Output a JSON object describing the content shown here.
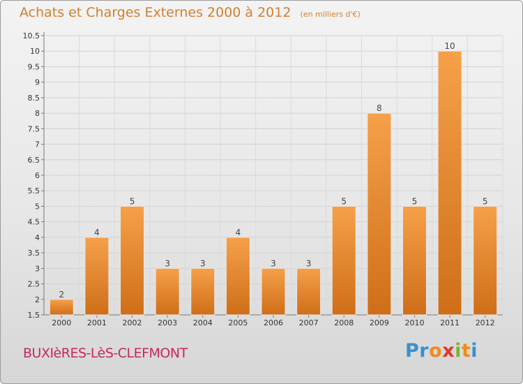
{
  "chart_data": {
    "type": "bar",
    "title": "Achats et Charges Externes 2000 à 2012",
    "subtitle": "(en milliers d'€)",
    "categories": [
      "2000",
      "2001",
      "2002",
      "2003",
      "2004",
      "2005",
      "2006",
      "2007",
      "2008",
      "2009",
      "2010",
      "2011",
      "2012"
    ],
    "values": [
      2,
      4,
      5,
      3,
      3,
      4,
      3,
      3,
      5,
      8,
      5,
      10,
      5
    ],
    "ylim": [
      1.5,
      10.5
    ],
    "yticks": [
      "1.5",
      "2",
      "2.5",
      "3",
      "3.5",
      "4",
      "4.5",
      "5",
      "5.5",
      "6",
      "6.5",
      "7",
      "7.5",
      "8",
      "8.5",
      "9",
      "9.5",
      "10",
      "10.5"
    ],
    "grid": true,
    "bar_color": "#f0923a"
  },
  "footer": {
    "commune": "BUXIèRES-LèS-CLEFMONT",
    "logo": [
      "P",
      "r",
      "o",
      "x",
      "i",
      "t",
      "i"
    ]
  }
}
